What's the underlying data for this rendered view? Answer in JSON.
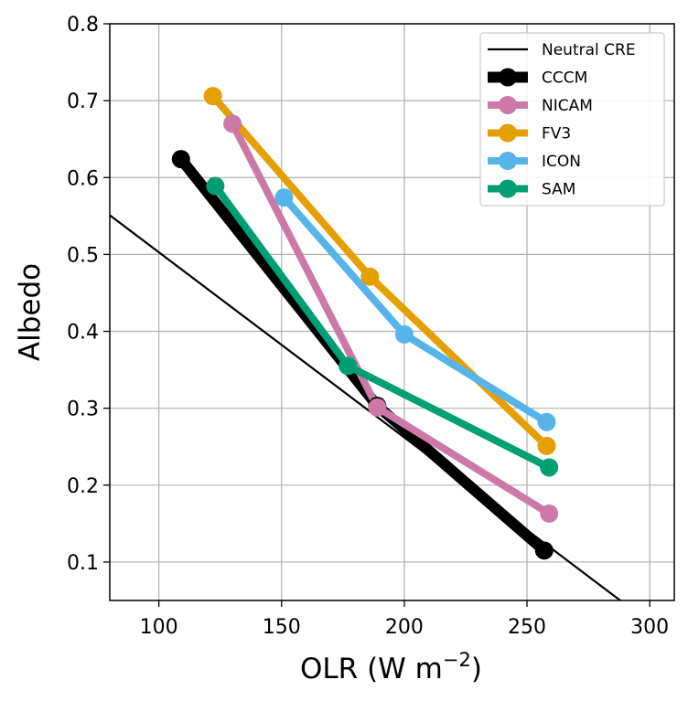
{
  "chart_data": {
    "type": "line",
    "title": "",
    "xlabel": "OLR (W m",
    "xlabel_sup": "−2",
    "xlabel_close": ")",
    "ylabel": "Albedo",
    "xlim": [
      80,
      310
    ],
    "ylim": [
      0.05,
      0.8
    ],
    "xticks": [
      100,
      150,
      200,
      250,
      300
    ],
    "yticks": [
      0.1,
      0.2,
      0.3,
      0.4,
      0.5,
      0.6,
      0.7,
      0.8
    ],
    "xtick_labels": [
      "100",
      "150",
      "200",
      "250",
      "300"
    ],
    "ytick_labels": [
      "0.1",
      "0.2",
      "0.3",
      "0.4",
      "0.5",
      "0.6",
      "0.7",
      "0.8"
    ],
    "grid": true,
    "legend_position": "top-right",
    "reference_line": {
      "name": "Neutral CRE",
      "color": "#000000",
      "points": [
        [
          80,
          0.551
        ],
        [
          288,
          0.05
        ]
      ]
    },
    "series": [
      {
        "name": "CCCM",
        "color": "#000000",
        "line_width": 12,
        "x": [
          109,
          189,
          257
        ],
        "y": [
          0.624,
          0.303,
          0.115
        ]
      },
      {
        "name": "NICAM",
        "color": "#CC79A7",
        "line_width": 8,
        "x": [
          130,
          189,
          259
        ],
        "y": [
          0.67,
          0.301,
          0.163
        ]
      },
      {
        "name": "FV3",
        "color": "#E69F00",
        "line_width": 8,
        "x": [
          122,
          186,
          258
        ],
        "y": [
          0.706,
          0.471,
          0.251
        ]
      },
      {
        "name": "ICON",
        "color": "#56B4E9",
        "line_width": 8,
        "x": [
          151,
          200,
          258
        ],
        "y": [
          0.574,
          0.396,
          0.282
        ]
      },
      {
        "name": "SAM",
        "color": "#009E73",
        "line_width": 8,
        "x": [
          123,
          177,
          259
        ],
        "y": [
          0.589,
          0.355,
          0.223
        ]
      }
    ]
  }
}
